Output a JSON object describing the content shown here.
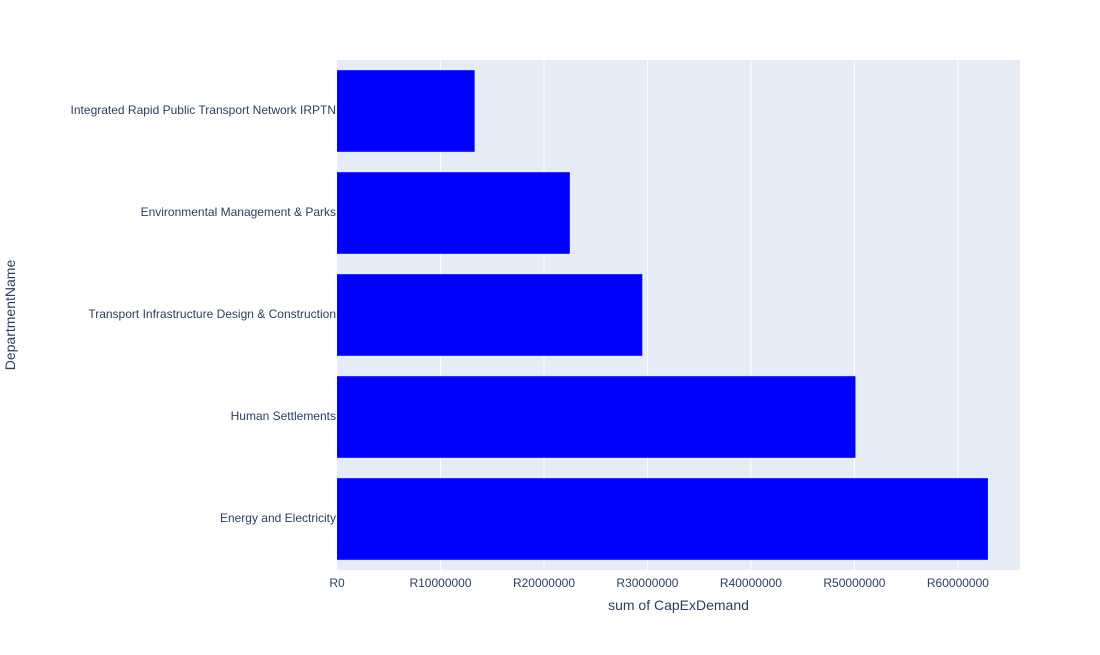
{
  "chart_data": {
    "type": "bar",
    "orientation": "horizontal",
    "categories": [
      "Integrated Rapid Public Transport Network IRPTN",
      "Environmental Management & Parks",
      "Transport Infrastructure Design & Construction",
      "Human Settlements",
      "Energy and Electricity"
    ],
    "values": [
      13300000,
      22500000,
      29500000,
      50100000,
      62900000
    ],
    "xlabel": "sum of CapExDemand",
    "ylabel": "DepartmentName",
    "xlim": [
      0,
      66000000
    ],
    "x_ticks": [
      0,
      10000000,
      20000000,
      30000000,
      40000000,
      50000000,
      60000000
    ],
    "x_tick_labels": [
      "R0",
      "R10000000",
      "R20000000",
      "R30000000",
      "R40000000",
      "R50000000",
      "R60000000"
    ],
    "grid": true,
    "colors": {
      "bar": "#0000ff",
      "plot_background": "#e5ecf6",
      "gridline": "#ffffff",
      "text": "#2a3f5f"
    }
  }
}
